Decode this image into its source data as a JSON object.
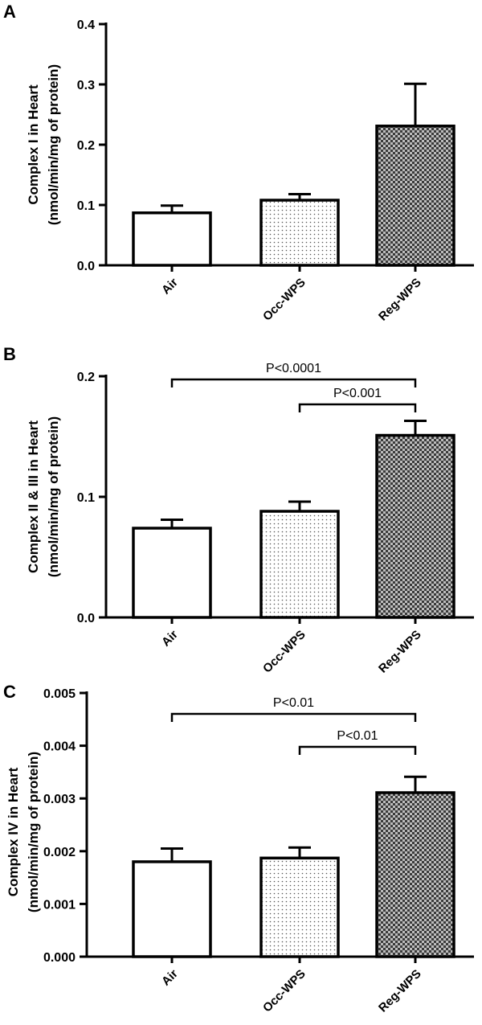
{
  "figure": {
    "panels": [
      {
        "letter": "A",
        "ylabel_line1": "Complex I in Heart",
        "ylabel_line2": "(nmol/min/mg of protein)"
      },
      {
        "letter": "B",
        "ylabel_line1": "Complex II & III in Heart",
        "ylabel_line2": "(nmol/min/mg of protein)"
      },
      {
        "letter": "C",
        "ylabel_line1": "Complex IV in Heart",
        "ylabel_line2": "(nmol/min/mg of protein)"
      }
    ]
  },
  "colors": {
    "axis": "#000000",
    "bar_fill_air": "#ffffff",
    "bar_pattern_occ": "dots",
    "bar_pattern_reg": "checkered"
  },
  "chart_data": [
    {
      "type": "bar",
      "panel": "A",
      "title": "",
      "xlabel": "",
      "ylabel": "Complex I in Heart (nmol/min/mg of protein)",
      "categories": [
        "Air",
        "Occ-WPS",
        "Reg-WPS"
      ],
      "values": [
        0.087,
        0.108,
        0.231
      ],
      "errors": [
        0.012,
        0.01,
        0.07
      ],
      "ylim": [
        0,
        0.4
      ],
      "yticks": [
        0.0,
        0.1,
        0.2,
        0.3,
        0.4
      ],
      "ytick_labels": [
        "0.0",
        "0.1",
        "0.2",
        "0.3",
        "0.4"
      ],
      "comparisons": [],
      "grid": false
    },
    {
      "type": "bar",
      "panel": "B",
      "title": "",
      "xlabel": "",
      "ylabel": "Complex II & III in Heart (nmol/min/mg of protein)",
      "categories": [
        "Air",
        "Occ-WPS",
        "Reg-WPS"
      ],
      "values": [
        0.074,
        0.088,
        0.151
      ],
      "errors": [
        0.007,
        0.008,
        0.012
      ],
      "ylim": [
        0,
        0.2
      ],
      "yticks": [
        0.0,
        0.1,
        0.2
      ],
      "ytick_labels": [
        "0.0",
        "0.1",
        "0.2"
      ],
      "comparisons": [
        {
          "from": "Air",
          "to": "Reg-WPS",
          "label": "P<0.0001"
        },
        {
          "from": "Occ-WPS",
          "to": "Reg-WPS",
          "label": "P<0.001"
        }
      ],
      "grid": false
    },
    {
      "type": "bar",
      "panel": "C",
      "title": "",
      "xlabel": "",
      "ylabel": "Complex IV in Heart (nmol/min/mg of protein)",
      "categories": [
        "Air",
        "Occ-WPS",
        "Reg-WPS"
      ],
      "values": [
        0.0018,
        0.00187,
        0.00311
      ],
      "errors": [
        0.00025,
        0.0002,
        0.0003
      ],
      "ylim": [
        0,
        0.005
      ],
      "yticks": [
        0.0,
        0.001,
        0.002,
        0.003,
        0.004,
        0.005
      ],
      "ytick_labels": [
        "0.000",
        "0.001",
        "0.002",
        "0.003",
        "0.004",
        "0.005"
      ],
      "comparisons": [
        {
          "from": "Air",
          "to": "Reg-WPS",
          "label": "P<0.01"
        },
        {
          "from": "Occ-WPS",
          "to": "Reg-WPS",
          "label": "P<0.01"
        }
      ],
      "grid": false
    }
  ]
}
